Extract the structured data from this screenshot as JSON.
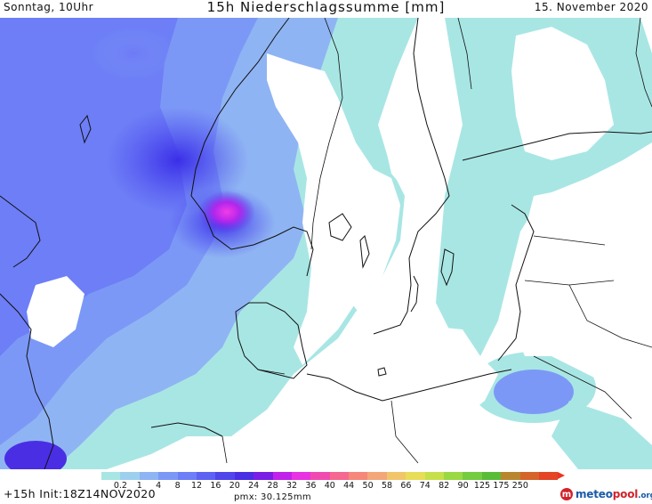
{
  "header": {
    "left": "Sonntag, 10Uhr",
    "title": "15h Niederschlagssumme [mm]",
    "right": "15. November 2020"
  },
  "legend": {
    "ticks": [
      "0.2",
      "1",
      "4",
      "8",
      "12",
      "16",
      "20",
      "24",
      "28",
      "32",
      "36",
      "40",
      "44",
      "50",
      "58",
      "66",
      "74",
      "82",
      "90",
      "125",
      "175",
      "250"
    ],
    "colors": [
      "#a8e6e4",
      "#9dd0ee",
      "#8fb4f3",
      "#7c98f6",
      "#6d7ef6",
      "#5e62f2",
      "#5046ea",
      "#4a2ee4",
      "#7a1ee6",
      "#c022ea",
      "#e833e2",
      "#f04ab0",
      "#f66890",
      "#f5887a",
      "#f3a67a",
      "#f1c56a",
      "#e8dd58",
      "#c6e04a",
      "#9ad844",
      "#74cc40",
      "#58bc38",
      "#b8862e",
      "#d4642a",
      "#e34526"
    ],
    "arrow_color": "#ee3322"
  },
  "footer": {
    "left": "+15h Init:18Z14NOV2020",
    "mid": "pmx: 30.125mm",
    "logo_meteo": "meteo",
    "logo_pool": "pool",
    "logo_tld": ".org"
  },
  "map": {
    "region": "North Sea / Scandinavia / Baltic",
    "colors": {
      "land_border": "#111111",
      "no_rain": "#ffffff"
    }
  }
}
